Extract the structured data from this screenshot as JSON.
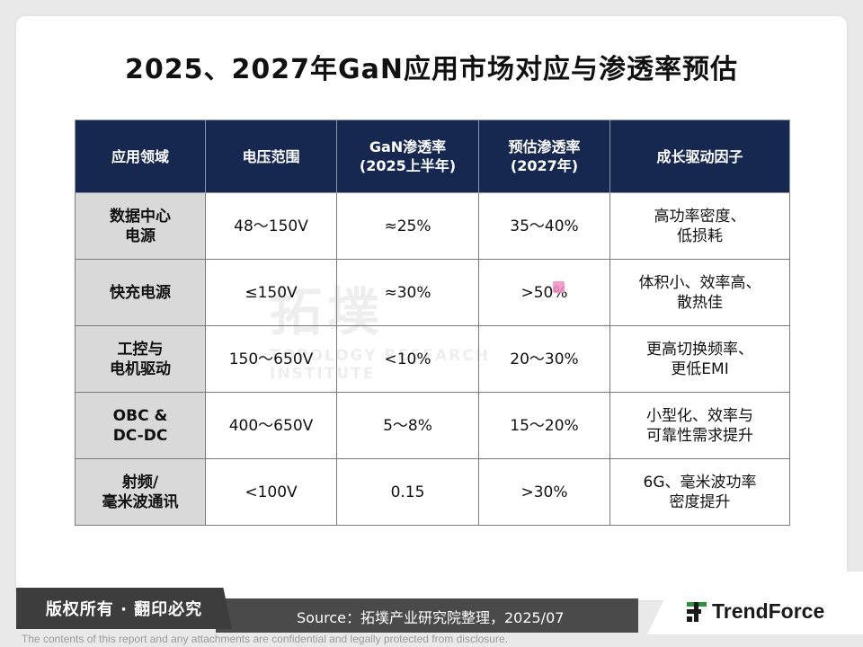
{
  "title": "2025、2027年GaN应用市场对应与渗透率预估",
  "watermark": {
    "main": "拓墣",
    "sub": "TOPOLOGY RESEARCH INSTITUTE"
  },
  "table": {
    "headers": [
      "应用领域",
      "电压范围",
      "GaN渗透率\n(2025上半年)",
      "预估渗透率\n(2027年)",
      "成长驱动因子"
    ],
    "rows": [
      [
        "数据中心\n电源",
        "48～150V",
        "≈25%",
        "35～40%",
        "高功率密度、\n低损耗"
      ],
      [
        "快充电源",
        "≤150V",
        "≈30%",
        ">50%",
        "体积小、效率高、\n散热佳"
      ],
      [
        "工控与\n电机驱动",
        "150～650V",
        "<10%",
        "20～30%",
        "更高切换频率、\n更低EMI"
      ],
      [
        "OBC &\nDC-DC",
        "400～650V",
        "5～8%",
        "15～20%",
        "小型化、效率与\n可靠性需求提升"
      ],
      [
        "射频/\n毫米波通讯",
        "<100V",
        "0.15",
        ">30%",
        "6G、毫米波功率\n密度提升"
      ]
    ]
  },
  "footer": {
    "copyright": "版权所有 · 翻印必究",
    "source": "Source：拓墣产业研究院整理，2025/07",
    "brand": "TrendForce",
    "disclaimer": "The contents of this report and any attachments are confidential and legally protected from disclosure."
  },
  "colors": {
    "header_bg": "#16284f",
    "rowhead_bg": "#d9d9d9",
    "footer_bg": "#3d3d3d",
    "brand_green": "#2f8f3a"
  }
}
